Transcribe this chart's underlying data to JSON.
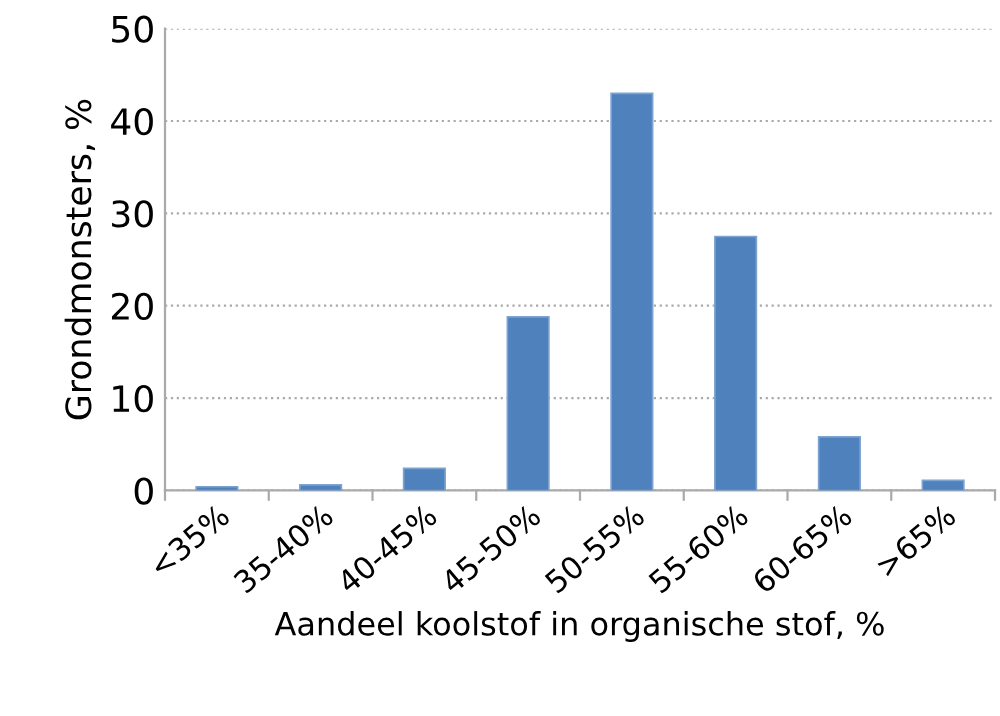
{
  "chart_data": {
    "type": "bar",
    "xlabel": "Aandeel koolstof in organische stof, %",
    "ylabel": "Grondmonsters, %",
    "categories": [
      "<35%",
      "35-40%",
      "40-45%",
      "45-50%",
      "50-55%",
      "55-60%",
      "60-65%",
      ">65%"
    ],
    "values": [
      0.4,
      0.6,
      2.4,
      18.8,
      43.0,
      27.5,
      5.8,
      1.1
    ],
    "color": "#4f81bd",
    "ylim": [
      0,
      50
    ],
    "yticks": [
      0,
      10,
      20,
      30,
      40,
      50
    ],
    "grid": "y",
    "legend": false
  }
}
